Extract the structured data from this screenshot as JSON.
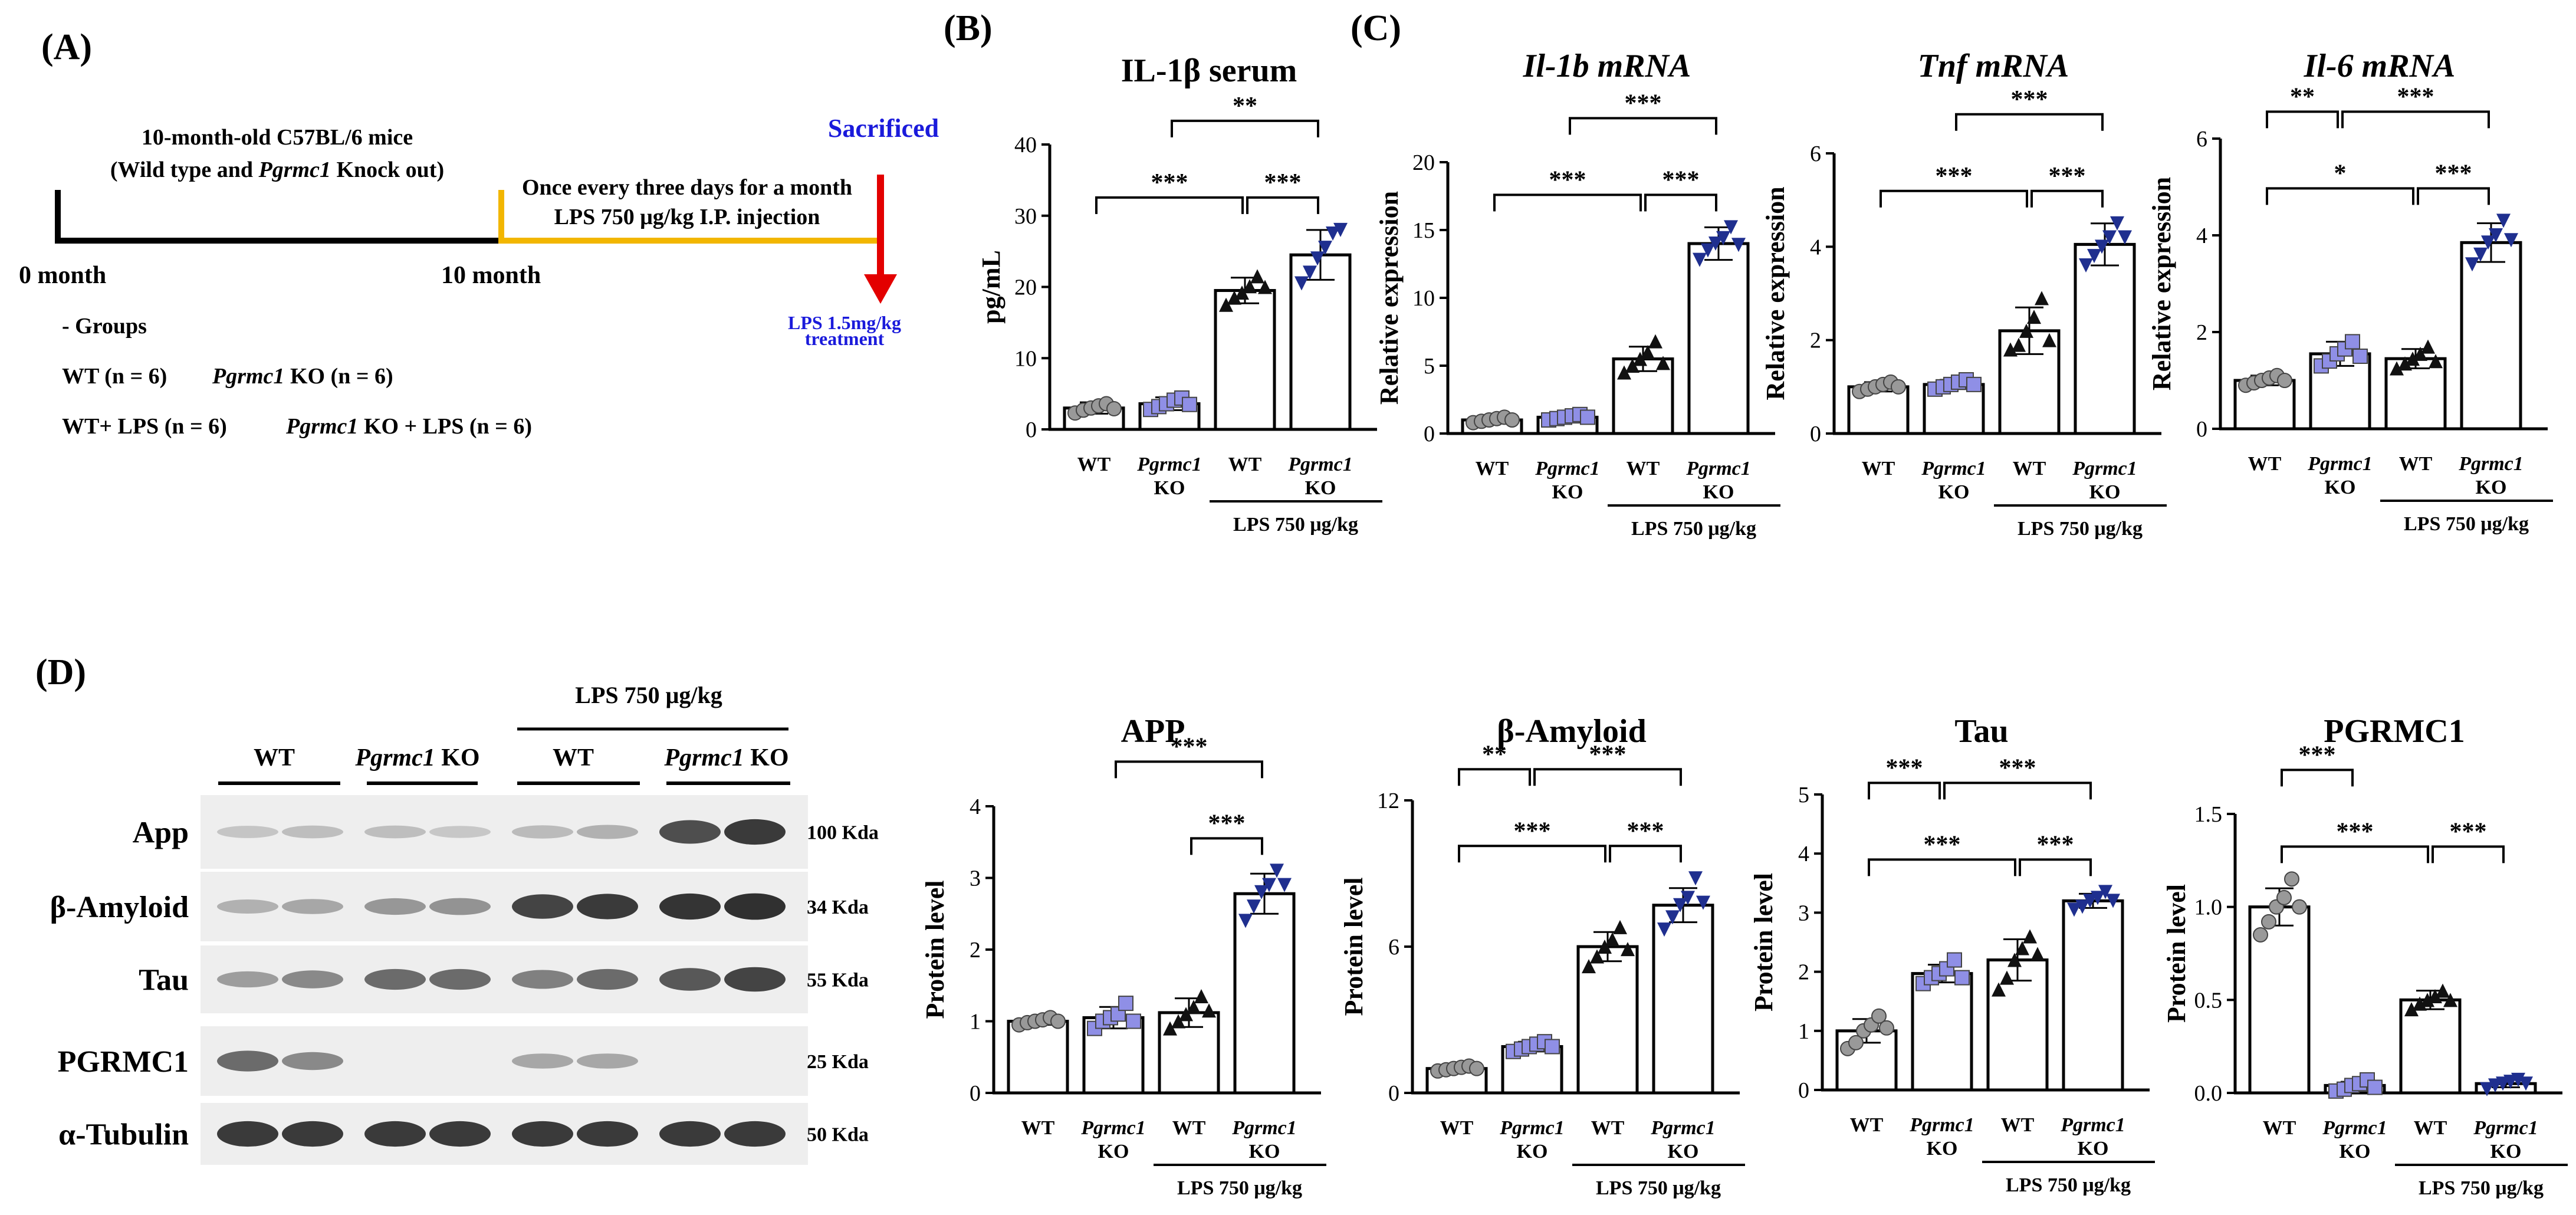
{
  "panel_labels": {
    "A": "(A)",
    "B": "(B)",
    "C": "(C)",
    "D": "(D)"
  },
  "panelA": {
    "line1": "10-month-old C57BL/6 mice",
    "line2_pre": "(Wild type and ",
    "line2_gene": "Pgrmc1",
    "line2_post": " Knock out)",
    "treat1": "Once every three days for a month",
    "treat2": "LPS 750 μg/kg I.P. injection",
    "sacrificed": "Sacrificed",
    "lps_final1": "LPS 1.5mg/kg",
    "lps_final2": "treatment",
    "month0": "0 month",
    "month10": "10 month",
    "groups_title": "- Groups",
    "g1": "WT (n = 6)",
    "g2_gene": "Pgrmc1",
    "g2_rest": " KO (n = 6)",
    "g3": "WT+ LPS (n = 6)",
    "g4_gene": "Pgrmc1",
    "g4_rest": " KO + LPS (n = 6)",
    "colors": {
      "black_line": "#000000",
      "yellow_line": "#f2b600",
      "arrow": "#e30000",
      "blue_text": "#1a1adb"
    }
  },
  "blot": {
    "lps_header": "LPS 750 μg/kg",
    "groups": [
      {
        "label": "WT",
        "gene": ""
      },
      {
        "label": " KO",
        "gene": "Pgrmc1"
      },
      {
        "label": "WT",
        "gene": ""
      },
      {
        "label": " KO",
        "gene": "Pgrmc1"
      }
    ],
    "rows": [
      {
        "name": "App",
        "kda": "100 Kda",
        "intensity": [
          0.15,
          0.18,
          0.18,
          0.14,
          0.2,
          0.25,
          0.75,
          0.85
        ]
      },
      {
        "name": "β-Amyloid",
        "kda": "34 Kda",
        "intensity": [
          0.25,
          0.3,
          0.38,
          0.4,
          0.8,
          0.85,
          0.88,
          0.9
        ]
      },
      {
        "name": "Tau",
        "kda": "55 Kda",
        "intensity": [
          0.35,
          0.45,
          0.6,
          0.6,
          0.5,
          0.6,
          0.7,
          0.8
        ]
      },
      {
        "name": "PGRMC1",
        "kda": "25 Kda",
        "intensity": [
          0.6,
          0.45,
          0.0,
          0.0,
          0.3,
          0.3,
          0.0,
          0.0
        ]
      },
      {
        "name": "α-Tubulin",
        "kda": "50 Kda",
        "intensity": [
          0.85,
          0.85,
          0.85,
          0.85,
          0.85,
          0.85,
          0.85,
          0.85
        ]
      }
    ]
  },
  "common": {
    "x_labels": [
      {
        "l1": "WT",
        "l2": "",
        "italic": false
      },
      {
        "l1": "Pgrmc1",
        "l2": "KO",
        "italic": true
      },
      {
        "l1": "WT",
        "l2": "",
        "italic": false
      },
      {
        "l1": "Pgrmc1",
        "l2": "KO",
        "italic": true
      }
    ],
    "lps_label": "LPS 750 μg/kg",
    "point_colors": [
      "#999999",
      "#8f8fe6",
      "#111111",
      "#1f2f8f"
    ],
    "point_shapes": [
      "circle",
      "square",
      "triangle",
      "triangle-down"
    ]
  },
  "chart_data": [
    {
      "id": "il1b_serum",
      "type": "bar",
      "title": "IL-1β serum",
      "title_italic": false,
      "ylabel": "pg/mL",
      "ylim": [
        0,
        40
      ],
      "yticks": [
        0,
        10,
        20,
        30,
        40
      ],
      "tick_labels": [
        "0",
        "10",
        "20",
        "30",
        "40"
      ],
      "values": [
        3.0,
        3.6,
        19.5,
        24.5
      ],
      "errors": [
        0.8,
        0.9,
        1.8,
        3.5
      ],
      "points": [
        [
          2.3,
          2.7,
          3.0,
          3.3,
          3.6,
          2.9
        ],
        [
          2.8,
          3.2,
          3.6,
          4.1,
          4.4,
          3.5
        ],
        [
          17.5,
          18.5,
          19.2,
          20.1,
          21.5,
          20.0
        ],
        [
          20.5,
          22.0,
          24.0,
          25.5,
          27.5,
          28.0
        ]
      ],
      "sig": [
        {
          "a": 0,
          "b": 2,
          "label": "***"
        },
        {
          "a": 2,
          "b": 3,
          "label": "***"
        },
        {
          "a": 1,
          "b": 3,
          "label": "**"
        }
      ]
    },
    {
      "id": "il1b_mrna",
      "type": "bar",
      "title": "Il-1b mRNA",
      "title_italic": true,
      "ylabel": "Relative expression",
      "ylim": [
        0,
        20
      ],
      "yticks": [
        0,
        5,
        10,
        15,
        20
      ],
      "tick_labels": [
        "0",
        "5",
        "10",
        "15",
        "20"
      ],
      "values": [
        1.0,
        1.2,
        5.5,
        14.0
      ],
      "errors": [
        0.2,
        0.25,
        0.9,
        1.2
      ],
      "points": [
        [
          0.8,
          0.9,
          1.0,
          1.1,
          1.2,
          1.0
        ],
        [
          1.0,
          1.1,
          1.2,
          1.3,
          1.4,
          1.2
        ],
        [
          4.5,
          5.0,
          5.5,
          6.0,
          6.8,
          5.2
        ],
        [
          12.8,
          13.5,
          14.0,
          14.4,
          15.2,
          13.9
        ]
      ],
      "sig": [
        {
          "a": 0,
          "b": 2,
          "label": "***"
        },
        {
          "a": 2,
          "b": 3,
          "label": "***"
        },
        {
          "a": 1,
          "b": 3,
          "label": "***"
        }
      ]
    },
    {
      "id": "tnf_mrna",
      "type": "bar",
      "title": "Tnf mRNA",
      "title_italic": true,
      "ylabel": "Relative expression",
      "ylim": [
        0,
        6
      ],
      "yticks": [
        0,
        2,
        4,
        6
      ],
      "tick_labels": [
        "0",
        "2",
        "4",
        "6"
      ],
      "values": [
        1.0,
        1.05,
        2.2,
        4.05
      ],
      "errors": [
        0.1,
        0.1,
        0.5,
        0.45
      ],
      "points": [
        [
          0.9,
          0.95,
          1.0,
          1.05,
          1.1,
          1.0
        ],
        [
          0.95,
          1.0,
          1.05,
          1.1,
          1.15,
          1.05
        ],
        [
          1.8,
          1.9,
          2.2,
          2.5,
          2.9,
          2.0
        ],
        [
          3.6,
          3.8,
          4.0,
          4.2,
          4.5,
          4.2
        ]
      ],
      "sig": [
        {
          "a": 0,
          "b": 2,
          "label": "***"
        },
        {
          "a": 2,
          "b": 3,
          "label": "***"
        },
        {
          "a": 1,
          "b": 3,
          "label": "***"
        }
      ]
    },
    {
      "id": "il6_mrna",
      "type": "bar",
      "title": "Il-6 mRNA",
      "title_italic": true,
      "ylabel": "Relative expression",
      "ylim": [
        0,
        6
      ],
      "yticks": [
        0,
        2,
        4,
        6
      ],
      "tick_labels": [
        "0",
        "2",
        "4",
        "6"
      ],
      "values": [
        1.0,
        1.55,
        1.45,
        3.85
      ],
      "errors": [
        0.1,
        0.25,
        0.2,
        0.4
      ],
      "points": [
        [
          0.9,
          0.95,
          1.0,
          1.05,
          1.1,
          1.0
        ],
        [
          1.3,
          1.4,
          1.55,
          1.65,
          1.8,
          1.5
        ],
        [
          1.25,
          1.35,
          1.45,
          1.55,
          1.7,
          1.4
        ],
        [
          3.4,
          3.6,
          3.85,
          4.0,
          4.3,
          3.9
        ]
      ],
      "sig": [
        {
          "a": 0,
          "b": 1,
          "label": "**"
        },
        {
          "a": 0,
          "b": 2,
          "label": "*"
        },
        {
          "a": 2,
          "b": 3,
          "label": "***"
        },
        {
          "a": 1,
          "b": 3,
          "label": "***"
        }
      ]
    },
    {
      "id": "app",
      "type": "bar",
      "title": "APP",
      "title_italic": false,
      "ylabel": "Protein level",
      "ylim": [
        0,
        4
      ],
      "yticks": [
        0,
        1,
        2,
        3,
        4
      ],
      "tick_labels": [
        "0",
        "1",
        "2",
        "3",
        "4"
      ],
      "values": [
        1.0,
        1.05,
        1.12,
        2.78
      ],
      "errors": [
        0.05,
        0.15,
        0.2,
        0.28
      ],
      "points": [
        [
          0.95,
          0.98,
          1.0,
          1.02,
          1.05,
          1.0
        ],
        [
          0.9,
          1.0,
          1.05,
          1.1,
          1.25,
          1.0
        ],
        [
          0.9,
          1.0,
          1.1,
          1.2,
          1.35,
          1.15
        ],
        [
          2.4,
          2.6,
          2.8,
          2.9,
          3.1,
          2.9
        ]
      ],
      "sig": [
        {
          "a": 1,
          "b": 3,
          "label": "***"
        },
        {
          "a": 2,
          "b": 3,
          "label": "***"
        }
      ]
    },
    {
      "id": "beta_amyloid",
      "type": "bar",
      "title": "β-Amyloid",
      "title_italic": false,
      "ylabel": "Protein level",
      "ylim": [
        0,
        12
      ],
      "yticks": [
        0,
        6,
        12
      ],
      "tick_labels": [
        "0",
        "6",
        "12"
      ],
      "values": [
        1.0,
        1.9,
        6.0,
        7.7
      ],
      "errors": [
        0.1,
        0.2,
        0.6,
        0.7
      ],
      "points": [
        [
          0.9,
          0.95,
          1.0,
          1.05,
          1.1,
          1.0
        ],
        [
          1.7,
          1.8,
          1.9,
          2.0,
          2.1,
          1.9
        ],
        [
          5.2,
          5.6,
          6.0,
          6.3,
          6.8,
          5.9
        ],
        [
          6.7,
          7.2,
          7.7,
          8.0,
          8.8,
          7.8
        ]
      ],
      "sig": [
        {
          "a": 0,
          "b": 2,
          "label": "***"
        },
        {
          "a": 2,
          "b": 3,
          "label": "***"
        },
        {
          "a": 0,
          "b": 1,
          "label": "**"
        },
        {
          "a": 1,
          "b": 3,
          "label": "***"
        }
      ]
    },
    {
      "id": "tau",
      "type": "bar",
      "title": "Tau",
      "title_italic": false,
      "ylabel": "Protein level",
      "ylim": [
        0,
        5
      ],
      "yticks": [
        0,
        1,
        2,
        3,
        4,
        5
      ],
      "tick_labels": [
        "0",
        "1",
        "2",
        "3",
        "4",
        "5"
      ],
      "values": [
        1.0,
        1.97,
        2.2,
        3.2
      ],
      "errors": [
        0.2,
        0.15,
        0.35,
        0.12
      ],
      "points": [
        [
          0.7,
          0.8,
          1.0,
          1.1,
          1.25,
          1.05
        ],
        [
          1.8,
          1.9,
          1.97,
          2.05,
          2.2,
          1.9
        ],
        [
          1.7,
          1.9,
          2.2,
          2.4,
          2.6,
          2.3
        ],
        [
          3.05,
          3.1,
          3.2,
          3.25,
          3.35,
          3.2
        ]
      ],
      "sig": [
        {
          "a": 0,
          "b": 2,
          "label": "***"
        },
        {
          "a": 2,
          "b": 3,
          "label": "***"
        },
        {
          "a": 0,
          "b": 1,
          "label": "***"
        },
        {
          "a": 1,
          "b": 3,
          "label": "***"
        }
      ]
    },
    {
      "id": "pgrmc1",
      "type": "bar",
      "title": "PGRMC1",
      "title_italic": false,
      "ylabel": "Protein level",
      "ylim": [
        0,
        1.5
      ],
      "yticks": [
        0,
        0.5,
        1.0,
        1.5
      ],
      "tick_labels": [
        "0.0",
        "0.5",
        "1.0",
        "1.5"
      ],
      "values": [
        1.0,
        0.04,
        0.5,
        0.05
      ],
      "errors": [
        0.1,
        0.02,
        0.05,
        0.02
      ],
      "points": [
        [
          0.85,
          0.92,
          1.0,
          1.05,
          1.15,
          1.0
        ],
        [
          0.01,
          0.02,
          0.04,
          0.05,
          0.07,
          0.03
        ],
        [
          0.45,
          0.48,
          0.5,
          0.52,
          0.55,
          0.5
        ],
        [
          0.02,
          0.04,
          0.05,
          0.06,
          0.07,
          0.05
        ]
      ],
      "sig": [
        {
          "a": 0,
          "b": 1,
          "label": "***"
        },
        {
          "a": 0,
          "b": 2,
          "label": "***"
        },
        {
          "a": 2,
          "b": 3,
          "label": "***"
        }
      ]
    }
  ]
}
